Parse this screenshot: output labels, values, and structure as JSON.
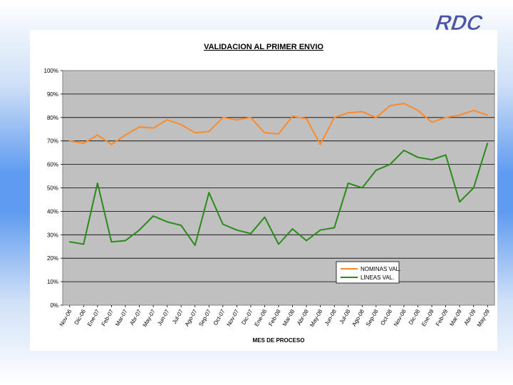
{
  "logo": {
    "text": "RDC",
    "color": "#4b55a8"
  },
  "chart_data": {
    "type": "line",
    "title": "VALIDACION AL PRIMER ENVIO",
    "xlabel": "MES DE PROCESO",
    "ylabel": "",
    "ylim": [
      0,
      100
    ],
    "y_ticks": [
      "0%",
      "10%",
      "20%",
      "30%",
      "40%",
      "50%",
      "60%",
      "70%",
      "80%",
      "90%",
      "100%"
    ],
    "grid": true,
    "plot_background": "#c0c0c0",
    "legend_position": "bottom-right",
    "categories": [
      "Nov-06",
      "Dic-06",
      "Ene-07",
      "Feb-07",
      "Mar-07",
      "Abr-07",
      "May-07",
      "Jun-07",
      "Jul-07",
      "Ago-07",
      "Sep-07",
      "Oct-07",
      "Nov-07",
      "Dic-07",
      "Ene-08",
      "Feb-08",
      "Mar-08",
      "Abr-08",
      "May-08",
      "Jun-08",
      "Jul-08",
      "Ago-08",
      "Sep-08",
      "Oct-08",
      "Nov-08",
      "Dic-08",
      "Ene-09",
      "Feb-09",
      "Mar-09",
      "Abr-09",
      "May-09"
    ],
    "series": [
      {
        "name": "NOMINAS VAL.",
        "color": "#ff8a2b",
        "values": [
          70,
          69,
          72.5,
          68.5,
          72.5,
          76,
          75.5,
          79,
          77,
          73.5,
          74,
          80,
          79,
          80,
          73.5,
          73,
          80.5,
          79.5,
          68.5,
          80,
          82,
          82.5,
          80,
          85,
          86,
          83,
          78,
          80,
          81,
          83,
          81
        ]
      },
      {
        "name": "LÍNEAS VAL.",
        "color": "#2a8a1a",
        "values": [
          27,
          26,
          52,
          27,
          27.5,
          32,
          38,
          35.5,
          34,
          25.5,
          48,
          34.5,
          32,
          30.5,
          37.5,
          26,
          32.5,
          27.5,
          32,
          33,
          52,
          50,
          57.5,
          60,
          66,
          63,
          62,
          64,
          44,
          50,
          69
        ]
      }
    ]
  }
}
